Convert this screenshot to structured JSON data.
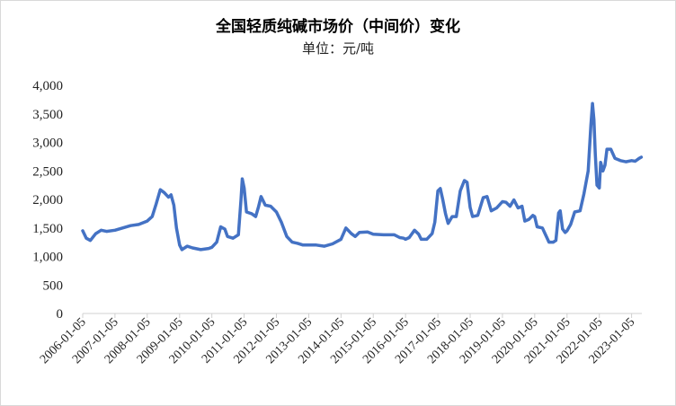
{
  "chart_data": {
    "type": "line",
    "title": "全国轻质纯碱市场价（中间价）变化",
    "subtitle": "单位：元/吨",
    "xlabel": "",
    "ylabel": "",
    "ylim": [
      0,
      4000
    ],
    "yticks": [
      {
        "value": 0,
        "label": "0"
      },
      {
        "value": 500,
        "label": "500"
      },
      {
        "value": 1000,
        "label": "1,000"
      },
      {
        "value": 1500,
        "label": "1,500"
      },
      {
        "value": 2000,
        "label": "2,000"
      },
      {
        "value": 2500,
        "label": "2,500"
      },
      {
        "value": 3000,
        "label": "3,000"
      },
      {
        "value": 3500,
        "label": "3,500"
      },
      {
        "value": 4000,
        "label": "4,000"
      }
    ],
    "xlim": [
      "2006-01-05",
      "2023-05-01"
    ],
    "xticks": [
      "2006-01-05",
      "2007-01-05",
      "2008-01-05",
      "2009-01-05",
      "2010-01-05",
      "2011-01-05",
      "2012-01-05",
      "2013-01-05",
      "2014-01-05",
      "2015-01-05",
      "2016-01-05",
      "2017-01-05",
      "2018-01-05",
      "2019-01-05",
      "2020-01-05",
      "2021-01-05",
      "2022-01-05",
      "2023-01-05"
    ],
    "grid": false,
    "legend": "none",
    "line_color": "#4472c4",
    "series": [
      {
        "points": [
          [
            "2006-01-05",
            1450
          ],
          [
            "2006-02-15",
            1320
          ],
          [
            "2006-04-01",
            1280
          ],
          [
            "2006-06-01",
            1400
          ],
          [
            "2006-08-01",
            1460
          ],
          [
            "2006-10-01",
            1440
          ],
          [
            "2007-01-05",
            1460
          ],
          [
            "2007-04-01",
            1500
          ],
          [
            "2007-07-01",
            1540
          ],
          [
            "2007-10-01",
            1560
          ],
          [
            "2008-01-05",
            1620
          ],
          [
            "2008-03-01",
            1700
          ],
          [
            "2008-04-15",
            1920
          ],
          [
            "2008-06-01",
            2170
          ],
          [
            "2008-07-15",
            2120
          ],
          [
            "2008-09-01",
            2040
          ],
          [
            "2008-10-01",
            2080
          ],
          [
            "2008-11-01",
            1900
          ],
          [
            "2008-12-01",
            1500
          ],
          [
            "2009-01-05",
            1200
          ],
          [
            "2009-02-01",
            1120
          ],
          [
            "2009-04-01",
            1180
          ],
          [
            "2009-06-01",
            1150
          ],
          [
            "2009-09-01",
            1120
          ],
          [
            "2009-12-01",
            1140
          ],
          [
            "2010-01-05",
            1160
          ],
          [
            "2010-03-01",
            1250
          ],
          [
            "2010-04-15",
            1520
          ],
          [
            "2010-06-01",
            1480
          ],
          [
            "2010-07-01",
            1350
          ],
          [
            "2010-09-01",
            1320
          ],
          [
            "2010-11-01",
            1380
          ],
          [
            "2010-12-01",
            2000
          ],
          [
            "2010-12-15",
            2360
          ],
          [
            "2011-01-05",
            2200
          ],
          [
            "2011-02-01",
            1780
          ],
          [
            "2011-04-01",
            1750
          ],
          [
            "2011-05-15",
            1700
          ],
          [
            "2011-06-15",
            1860
          ],
          [
            "2011-07-15",
            2050
          ],
          [
            "2011-09-01",
            1900
          ],
          [
            "2011-11-01",
            1880
          ],
          [
            "2012-01-05",
            1780
          ],
          [
            "2012-03-01",
            1600
          ],
          [
            "2012-05-01",
            1350
          ],
          [
            "2012-07-01",
            1250
          ],
          [
            "2012-09-01",
            1230
          ],
          [
            "2012-11-01",
            1200
          ],
          [
            "2013-01-05",
            1200
          ],
          [
            "2013-04-01",
            1200
          ],
          [
            "2013-07-01",
            1180
          ],
          [
            "2013-10-01",
            1220
          ],
          [
            "2014-01-05",
            1300
          ],
          [
            "2014-03-01",
            1500
          ],
          [
            "2014-05-01",
            1400
          ],
          [
            "2014-06-15",
            1350
          ],
          [
            "2014-08-01",
            1420
          ],
          [
            "2014-11-01",
            1430
          ],
          [
            "2015-01-05",
            1390
          ],
          [
            "2015-05-01",
            1380
          ],
          [
            "2015-09-01",
            1380
          ],
          [
            "2015-11-01",
            1330
          ],
          [
            "2015-12-15",
            1320
          ],
          [
            "2016-01-05",
            1300
          ],
          [
            "2016-02-15",
            1330
          ],
          [
            "2016-04-15",
            1460
          ],
          [
            "2016-06-01",
            1390
          ],
          [
            "2016-07-01",
            1300
          ],
          [
            "2016-09-01",
            1300
          ],
          [
            "2016-11-01",
            1400
          ],
          [
            "2016-12-01",
            1600
          ],
          [
            "2017-01-05",
            2150
          ],
          [
            "2017-02-01",
            2190
          ],
          [
            "2017-03-01",
            2000
          ],
          [
            "2017-04-01",
            1750
          ],
          [
            "2017-05-01",
            1580
          ],
          [
            "2017-06-15",
            1700
          ],
          [
            "2017-08-01",
            1700
          ],
          [
            "2017-09-15",
            2150
          ],
          [
            "2017-11-01",
            2330
          ],
          [
            "2017-12-01",
            2300
          ],
          [
            "2018-01-05",
            1860
          ],
          [
            "2018-02-01",
            1700
          ],
          [
            "2018-04-01",
            1720
          ],
          [
            "2018-06-01",
            2030
          ],
          [
            "2018-07-15",
            2050
          ],
          [
            "2018-09-01",
            1800
          ],
          [
            "2018-11-01",
            1850
          ],
          [
            "2019-01-05",
            1960
          ],
          [
            "2019-02-15",
            1950
          ],
          [
            "2019-04-01",
            1880
          ],
          [
            "2019-05-15",
            1990
          ],
          [
            "2019-07-01",
            1850
          ],
          [
            "2019-08-15",
            1880
          ],
          [
            "2019-09-15",
            1620
          ],
          [
            "2019-11-01",
            1650
          ],
          [
            "2019-12-15",
            1720
          ],
          [
            "2020-01-05",
            1700
          ],
          [
            "2020-02-01",
            1520
          ],
          [
            "2020-04-01",
            1500
          ],
          [
            "2020-05-01",
            1400
          ],
          [
            "2020-06-15",
            1250
          ],
          [
            "2020-08-01",
            1250
          ],
          [
            "2020-09-01",
            1280
          ],
          [
            "2020-10-01",
            1760
          ],
          [
            "2020-10-20",
            1800
          ],
          [
            "2020-11-15",
            1480
          ],
          [
            "2020-12-15",
            1420
          ],
          [
            "2021-01-05",
            1450
          ],
          [
            "2021-02-15",
            1560
          ],
          [
            "2021-04-01",
            1780
          ],
          [
            "2021-06-01",
            1800
          ],
          [
            "2021-07-15",
            2100
          ],
          [
            "2021-09-01",
            2500
          ],
          [
            "2021-10-01",
            3300
          ],
          [
            "2021-10-20",
            3680
          ],
          [
            "2021-11-05",
            3400
          ],
          [
            "2021-11-20",
            2800
          ],
          [
            "2021-12-10",
            2250
          ],
          [
            "2022-01-05",
            2200
          ],
          [
            "2022-01-20",
            2650
          ],
          [
            "2022-02-15",
            2500
          ],
          [
            "2022-03-10",
            2600
          ],
          [
            "2022-04-01",
            2880
          ],
          [
            "2022-05-15",
            2880
          ],
          [
            "2022-07-01",
            2720
          ],
          [
            "2022-09-01",
            2680
          ],
          [
            "2022-11-01",
            2660
          ],
          [
            "2023-01-05",
            2680
          ],
          [
            "2023-02-15",
            2670
          ],
          [
            "2023-04-01",
            2720
          ],
          [
            "2023-04-25",
            2740
          ]
        ]
      }
    ]
  }
}
